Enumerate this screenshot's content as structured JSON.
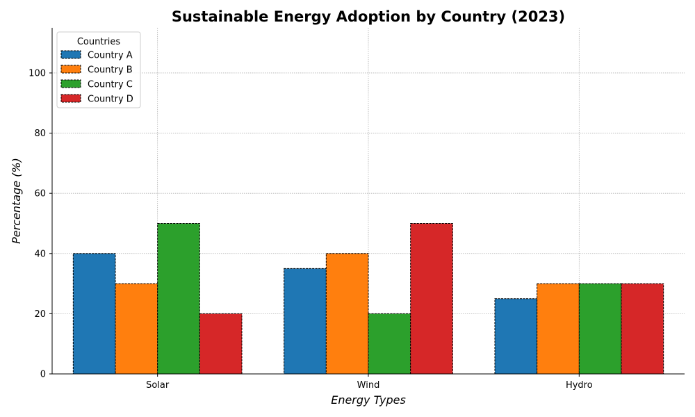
{
  "chart_data": {
    "type": "bar",
    "title": "Sustainable Energy Adoption by Country (2023)",
    "xlabel": "Energy Types",
    "ylabel": "Percentage (%)",
    "categories": [
      "Solar",
      "Wind",
      "Hydro"
    ],
    "ylim": [
      0,
      115
    ],
    "yticks": [
      0,
      20,
      40,
      60,
      80,
      100
    ],
    "grid": true,
    "legend": {
      "title": "Countries",
      "placement": "top-left"
    },
    "series": [
      {
        "name": "Country A",
        "color": "#1f77b4",
        "values": [
          40,
          35,
          25
        ]
      },
      {
        "name": "Country B",
        "color": "#ff7f0e",
        "values": [
          30,
          40,
          30
        ]
      },
      {
        "name": "Country C",
        "color": "#2ca02c",
        "values": [
          50,
          20,
          30
        ]
      },
      {
        "name": "Country D",
        "color": "#d62728",
        "values": [
          20,
          50,
          30
        ]
      }
    ]
  }
}
